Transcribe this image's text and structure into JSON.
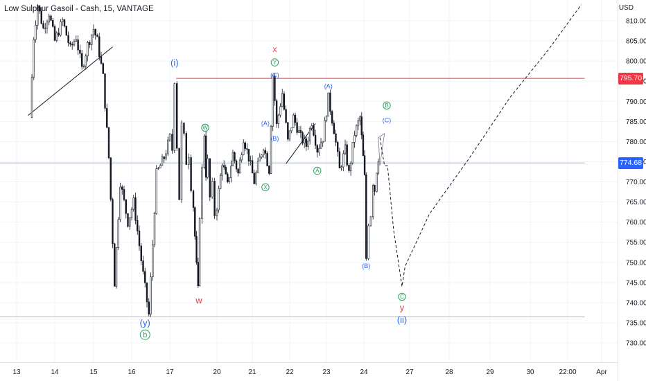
{
  "header": {
    "title": "Low Sulphur Gasoil - Cash, 15, VANTAGE"
  },
  "chart_data": {
    "type": "candlestick",
    "symbol": "Low Sulphur Gasoil - Cash",
    "interval": "15",
    "source": "VANTAGE",
    "currency": "USD",
    "y_ticks": [
      "810.00",
      "805.00",
      "800.00",
      "795.00",
      "790.00",
      "785.00",
      "780.00",
      "775.00",
      "770.00",
      "765.00",
      "760.00",
      "755.00",
      "750.00",
      "745.00",
      "740.00",
      "735.00",
      "730.00"
    ],
    "x_ticks": [
      "13",
      "14",
      "15",
      "16",
      "17",
      "20",
      "21",
      "22",
      "23",
      "24",
      "27",
      "28",
      "29",
      "30",
      "22:00",
      "Apr"
    ],
    "ylim": [
      727,
      813
    ],
    "price_tags": [
      {
        "value": "795.70",
        "color": "#f23645"
      },
      {
        "value": "774.68",
        "color": "#2962ff"
      }
    ],
    "price_path": [
      [
        13.35,
        786
      ],
      [
        13.45,
        806
      ],
      [
        13.55,
        814
      ],
      [
        13.7,
        808
      ],
      [
        13.85,
        812
      ],
      [
        14.0,
        805
      ],
      [
        14.2,
        810
      ],
      [
        14.4,
        803
      ],
      [
        14.55,
        806
      ],
      [
        14.7,
        798
      ],
      [
        14.85,
        804
      ],
      [
        15.0,
        808
      ],
      [
        15.1,
        805
      ],
      [
        15.25,
        796
      ],
      [
        15.4,
        776
      ],
      [
        15.55,
        745
      ],
      [
        15.7,
        770
      ],
      [
        15.9,
        760
      ],
      [
        16.05,
        765
      ],
      [
        16.3,
        747
      ],
      [
        16.45,
        737
      ],
      [
        16.65,
        772
      ],
      [
        16.85,
        776
      ],
      [
        17.0,
        781
      ],
      [
        17.15,
        778
      ],
      [
        17.3,
        795.5
      ],
      [
        17.45,
        779
      ],
      [
        17.6,
        766
      ],
      [
        17.75,
        784
      ],
      [
        17.9,
        781
      ],
      [
        18.05,
        775
      ],
      [
        18.2,
        777
      ],
      [
        18.35,
        769
      ],
      [
        18.5,
        764
      ],
      [
        18.7,
        749
      ],
      [
        18.8,
        743
      ],
      [
        18.9,
        762
      ],
      [
        19.05,
        773
      ],
      [
        19.2,
        782
      ],
      [
        19.3,
        772
      ],
      [
        19.4,
        775
      ],
      [
        19.55,
        766
      ],
      [
        19.7,
        769
      ],
      [
        19.85,
        762
      ],
      [
        20.0,
        764
      ],
      [
        20.15,
        775
      ],
      [
        20.3,
        769
      ],
      [
        20.45,
        777
      ],
      [
        20.6,
        772
      ],
      [
        20.75,
        781
      ],
      [
        20.9,
        776
      ],
      [
        21.05,
        770
      ],
      [
        21.15,
        774
      ],
      [
        21.3,
        779
      ],
      [
        21.45,
        773
      ],
      [
        21.55,
        796.5
      ],
      [
        21.65,
        784
      ],
      [
        21.8,
        792
      ],
      [
        21.95,
        780
      ],
      [
        22.1,
        786
      ],
      [
        22.3,
        781
      ],
      [
        22.45,
        779
      ],
      [
        22.6,
        785
      ],
      [
        22.75,
        778
      ],
      [
        22.9,
        781
      ],
      [
        23.05,
        790.8
      ],
      [
        23.2,
        783
      ],
      [
        23.35,
        773
      ],
      [
        23.5,
        778
      ],
      [
        23.6,
        772
      ],
      [
        23.75,
        782
      ],
      [
        23.9,
        786
      ],
      [
        24.05,
        771
      ],
      [
        24.15,
        751
      ],
      [
        24.3,
        760
      ],
      [
        24.45,
        762
      ],
      [
        24.6,
        770
      ],
      [
        24.7,
        768
      ],
      [
        24.85,
        773
      ],
      [
        24.95,
        776
      ]
    ],
    "trendlines": [
      {
        "from": [
          13.3,
          786.5
        ],
        "to": [
          15.5,
          803.5
        ]
      },
      {
        "from": [
          21.9,
          774.5
        ],
        "to": [
          22.7,
          784.5
        ]
      }
    ],
    "horizontal_levels": [
      {
        "value": 795.7,
        "from": 17.4,
        "to": 31.5,
        "color": "#f23645"
      },
      {
        "value": 774.68,
        "from": 12.5,
        "to": 31.5,
        "color": "#90b8f0"
      },
      {
        "value": 736.5,
        "from": 12.5,
        "to": 31.5,
        "color": "#b2b5be"
      }
    ],
    "projection": [
      [
        25.05,
        781
      ],
      [
        25.35,
        774
      ],
      [
        25.55,
        774
      ],
      [
        25.95,
        758
      ],
      [
        26.5,
        744
      ],
      [
        26.7,
        749
      ],
      [
        27.5,
        762
      ],
      [
        28.5,
        776
      ],
      [
        29.5,
        791
      ],
      [
        30.5,
        803
      ],
      [
        31.4,
        814
      ]
    ],
    "projection_channel": [
      [
        24.95,
        781
      ],
      [
        25.35,
        782
      ],
      [
        25.05,
        774
      ]
    ],
    "wave_labels": [
      {
        "text": "(i)",
        "x": 17.3,
        "y": 798.8,
        "color": "#2962ff",
        "size": 13
      },
      {
        "text": "W",
        "x": 19.25,
        "y": 783,
        "color": "#26a65b",
        "size": 8,
        "circled": true
      },
      {
        "text": "w",
        "x": 18.85,
        "y": 739.8,
        "color": "#f23645",
        "size": 13
      },
      {
        "text": "(y)",
        "x": 16.35,
        "y": 734.2,
        "color": "#2962ff",
        "size": 13
      },
      {
        "text": "b",
        "x": 16.35,
        "y": 731.4,
        "color": "#26a65b",
        "size": 11,
        "circled": true
      },
      {
        "text": "x",
        "x": 21.6,
        "y": 802.3,
        "color": "#f23645",
        "size": 12
      },
      {
        "text": "Y",
        "x": 21.6,
        "y": 799.2,
        "color": "#26a65b",
        "size": 8,
        "circled": true
      },
      {
        "text": "(C)",
        "x": 21.6,
        "y": 796,
        "color": "#2962ff",
        "size": 9
      },
      {
        "text": "(A)",
        "x": 21.35,
        "y": 784,
        "color": "#2962ff",
        "size": 9
      },
      {
        "text": "(B)",
        "x": 21.6,
        "y": 780.2,
        "color": "#2962ff",
        "size": 9
      },
      {
        "text": "X",
        "x": 21.35,
        "y": 768.2,
        "color": "#26a65b",
        "size": 8,
        "circled": true
      },
      {
        "text": "A",
        "x": 22.75,
        "y": 772.3,
        "color": "#26a65b",
        "size": 8,
        "circled": true
      },
      {
        "text": "(A)",
        "x": 23.05,
        "y": 793.2,
        "color": "#2962ff",
        "size": 9
      },
      {
        "text": "(B)",
        "x": 24.15,
        "y": 748.6,
        "color": "#2962ff",
        "size": 9
      },
      {
        "text": "B",
        "x": 25.5,
        "y": 788.5,
        "color": "#26a65b",
        "size": 8,
        "circled": true
      },
      {
        "text": "(C)",
        "x": 25.5,
        "y": 784.8,
        "color": "#2962ff",
        "size": 9
      },
      {
        "text": "C",
        "x": 26.5,
        "y": 741,
        "color": "#26a65b",
        "size": 8,
        "circled": true
      },
      {
        "text": "y",
        "x": 26.5,
        "y": 738,
        "color": "#f23645",
        "size": 13
      },
      {
        "text": "(ii)",
        "x": 26.5,
        "y": 735,
        "color": "#2962ff",
        "size": 13
      }
    ],
    "colors": {
      "up": "#131722",
      "down": "#131722",
      "projection": "#131722"
    }
  }
}
